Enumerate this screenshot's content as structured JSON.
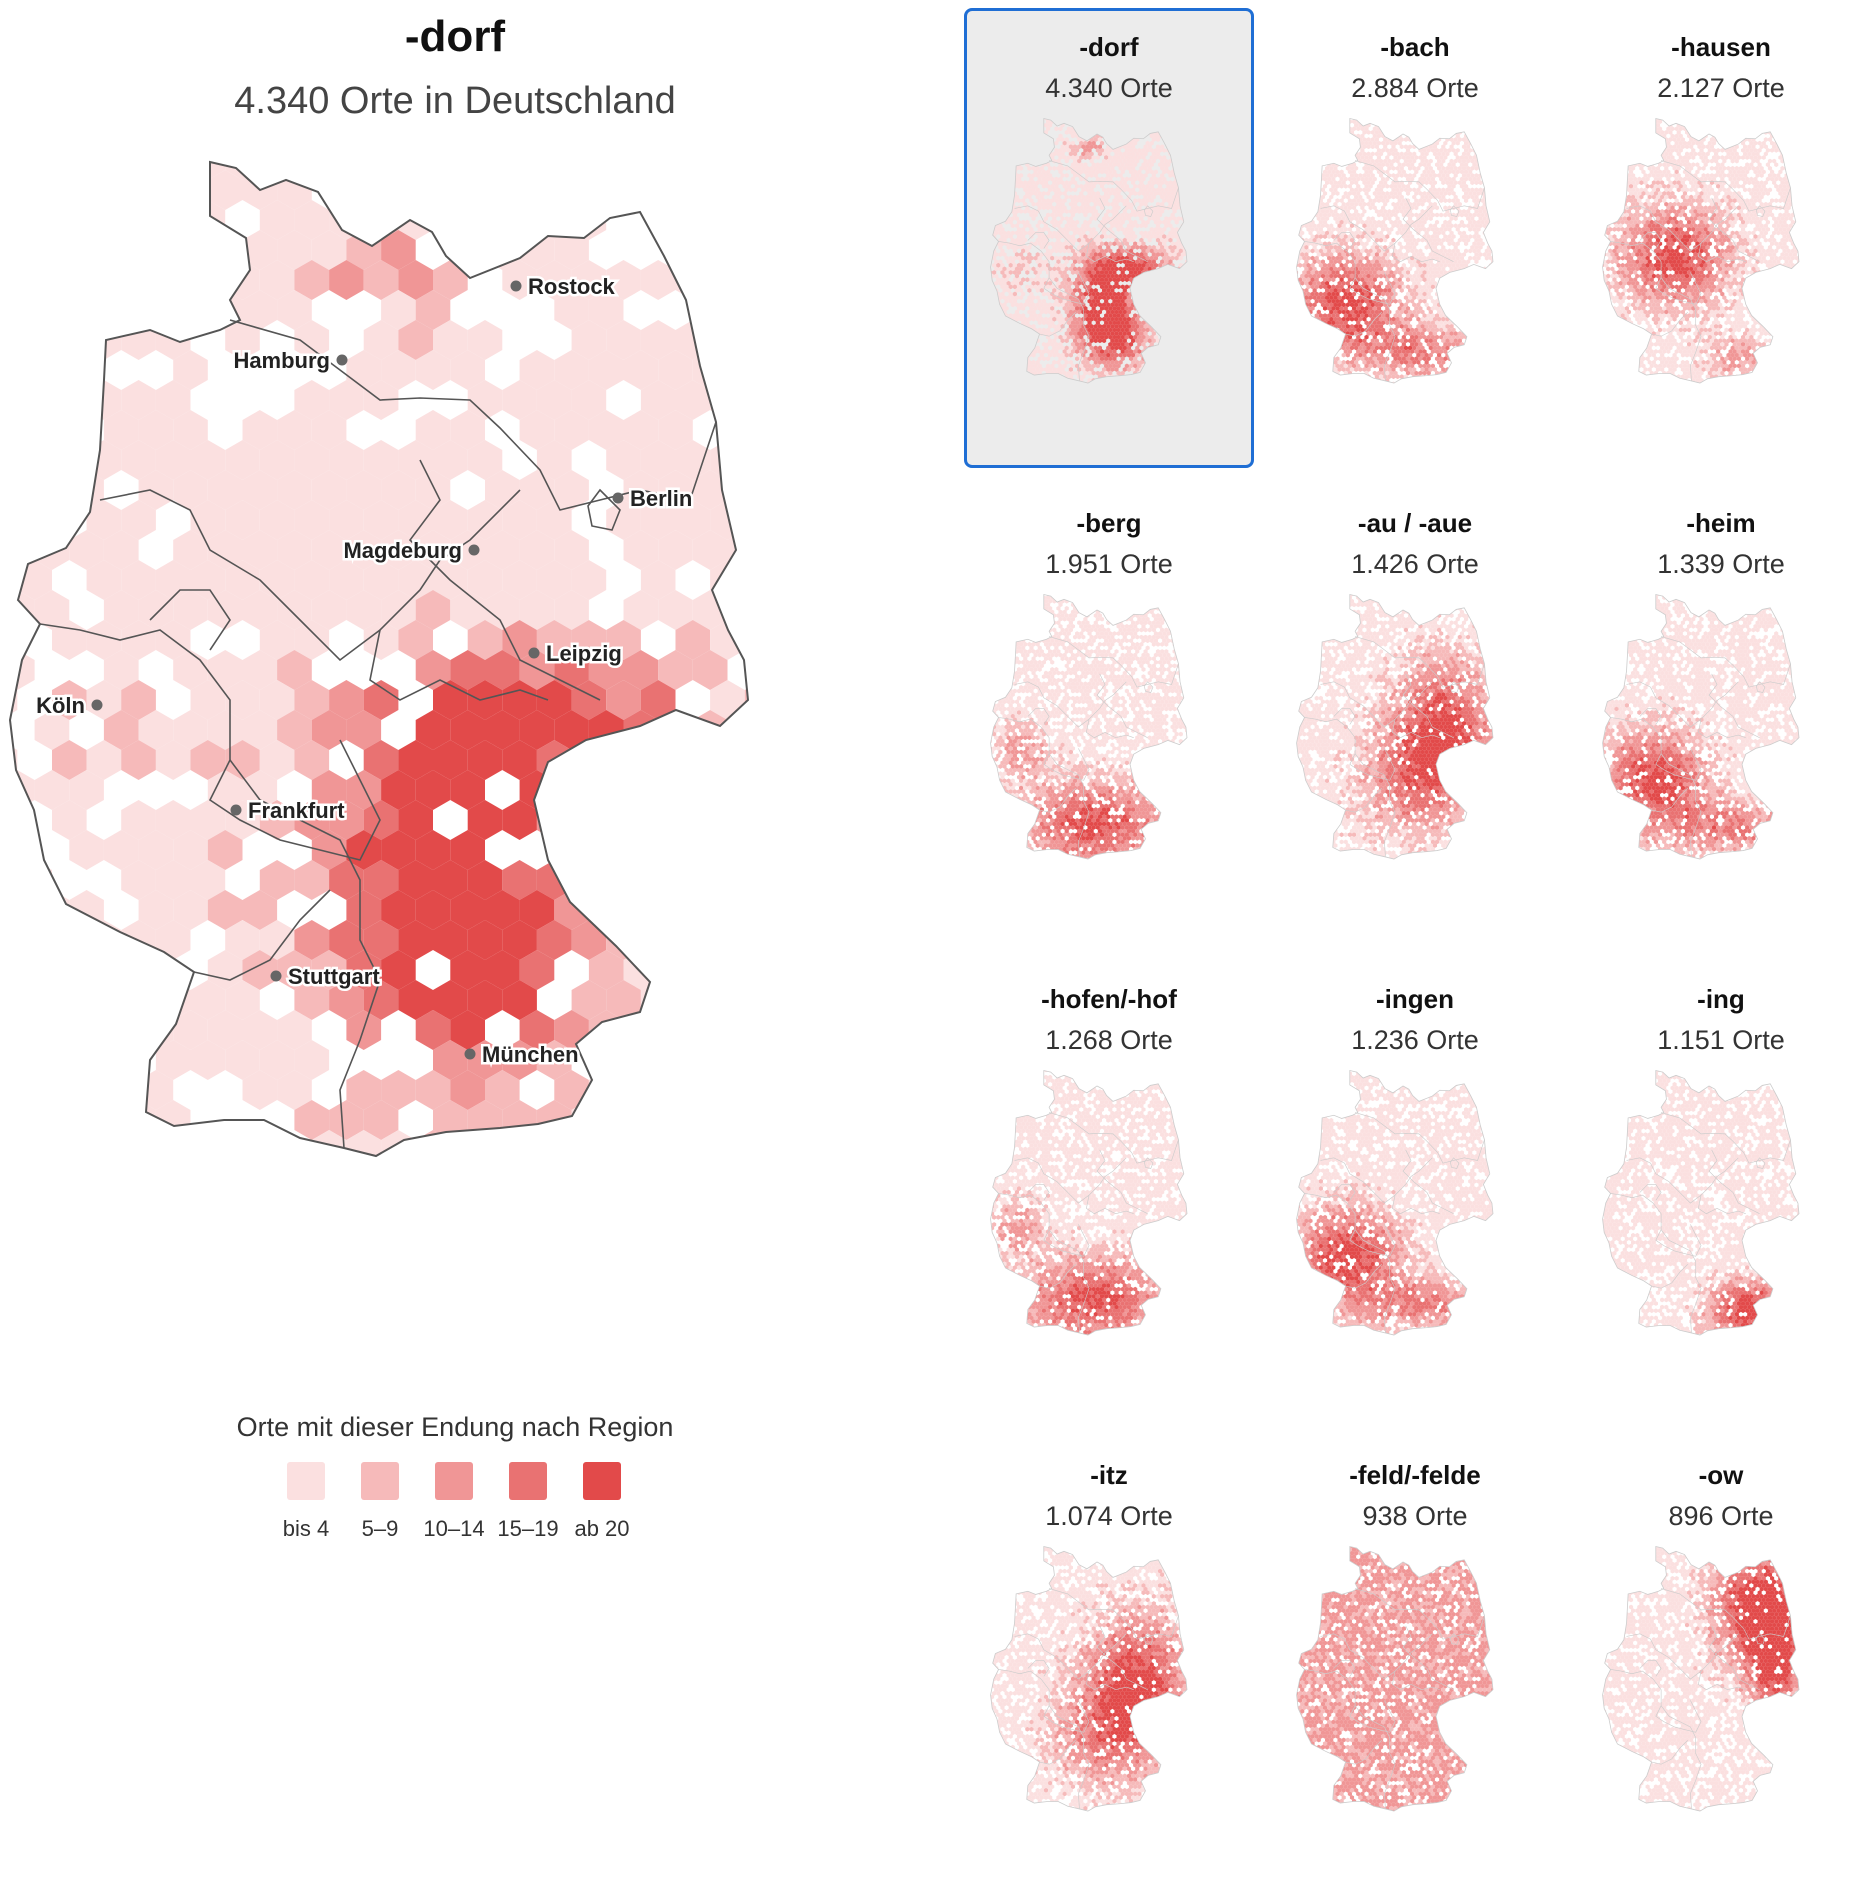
{
  "main": {
    "title": "-dorf",
    "subtitle": "4.340 Orte in Deutschland",
    "cities": [
      {
        "name": "Hamburg",
        "label_side": "left"
      },
      {
        "name": "Rostock",
        "label_side": "right"
      },
      {
        "name": "Berlin",
        "label_side": "right"
      },
      {
        "name": "Magdeburg",
        "label_side": "left"
      },
      {
        "name": "Leipzig",
        "label_side": "right"
      },
      {
        "name": "Köln",
        "label_side": "left"
      },
      {
        "name": "Frankfurt",
        "label_side": "right"
      },
      {
        "name": "Stuttgart",
        "label_side": "right"
      },
      {
        "name": "München",
        "label_side": "right"
      }
    ]
  },
  "legend": {
    "title": "Orte mit dieser Endung nach Region",
    "items": [
      {
        "label": "bis 4",
        "color": "#fbe0e0"
      },
      {
        "label": "5–9",
        "color": "#f6baba"
      },
      {
        "label": "10–14",
        "color": "#f09696"
      },
      {
        "label": "15–19",
        "color": "#e97272"
      },
      {
        "label": "ab 20",
        "color": "#e24a4a"
      }
    ]
  },
  "colors": {
    "border": "#555555",
    "tile_border": "#cccccc",
    "city_dot": "#666666",
    "selection": "#1f6ed4",
    "selected_background": "#ececec"
  },
  "tiles": [
    {
      "name": "-dorf",
      "count": "4.340 Orte",
      "selected": true,
      "hotspot": "southeast"
    },
    {
      "name": "-bach",
      "count": "2.884 Orte",
      "selected": false,
      "hotspot": "southwest"
    },
    {
      "name": "-hausen",
      "count": "2.127 Orte",
      "selected": false,
      "hotspot": "center"
    },
    {
      "name": "-berg",
      "count": "1.951 Orte",
      "selected": false,
      "hotspot": "south"
    },
    {
      "name": "-au / -aue",
      "count": "1.426 Orte",
      "selected": false,
      "hotspot": "east"
    },
    {
      "name": "-heim",
      "count": "1.339 Orte",
      "selected": false,
      "hotspot": "southwest"
    },
    {
      "name": "-hofen/-hof",
      "count": "1.268 Orte",
      "selected": false,
      "hotspot": "south"
    },
    {
      "name": "-ingen",
      "count": "1.236 Orte",
      "selected": false,
      "hotspot": "southwest"
    },
    {
      "name": "-ing",
      "count": "1.151 Orte",
      "selected": false,
      "hotspot": "bavaria"
    },
    {
      "name": "-itz",
      "count": "1.074 Orte",
      "selected": false,
      "hotspot": "east"
    },
    {
      "name": "-feld/-felde",
      "count": "938 Orte",
      "selected": false,
      "hotspot": "spread"
    },
    {
      "name": "-ow",
      "count": "896 Orte",
      "selected": false,
      "hotspot": "northeast"
    }
  ]
}
